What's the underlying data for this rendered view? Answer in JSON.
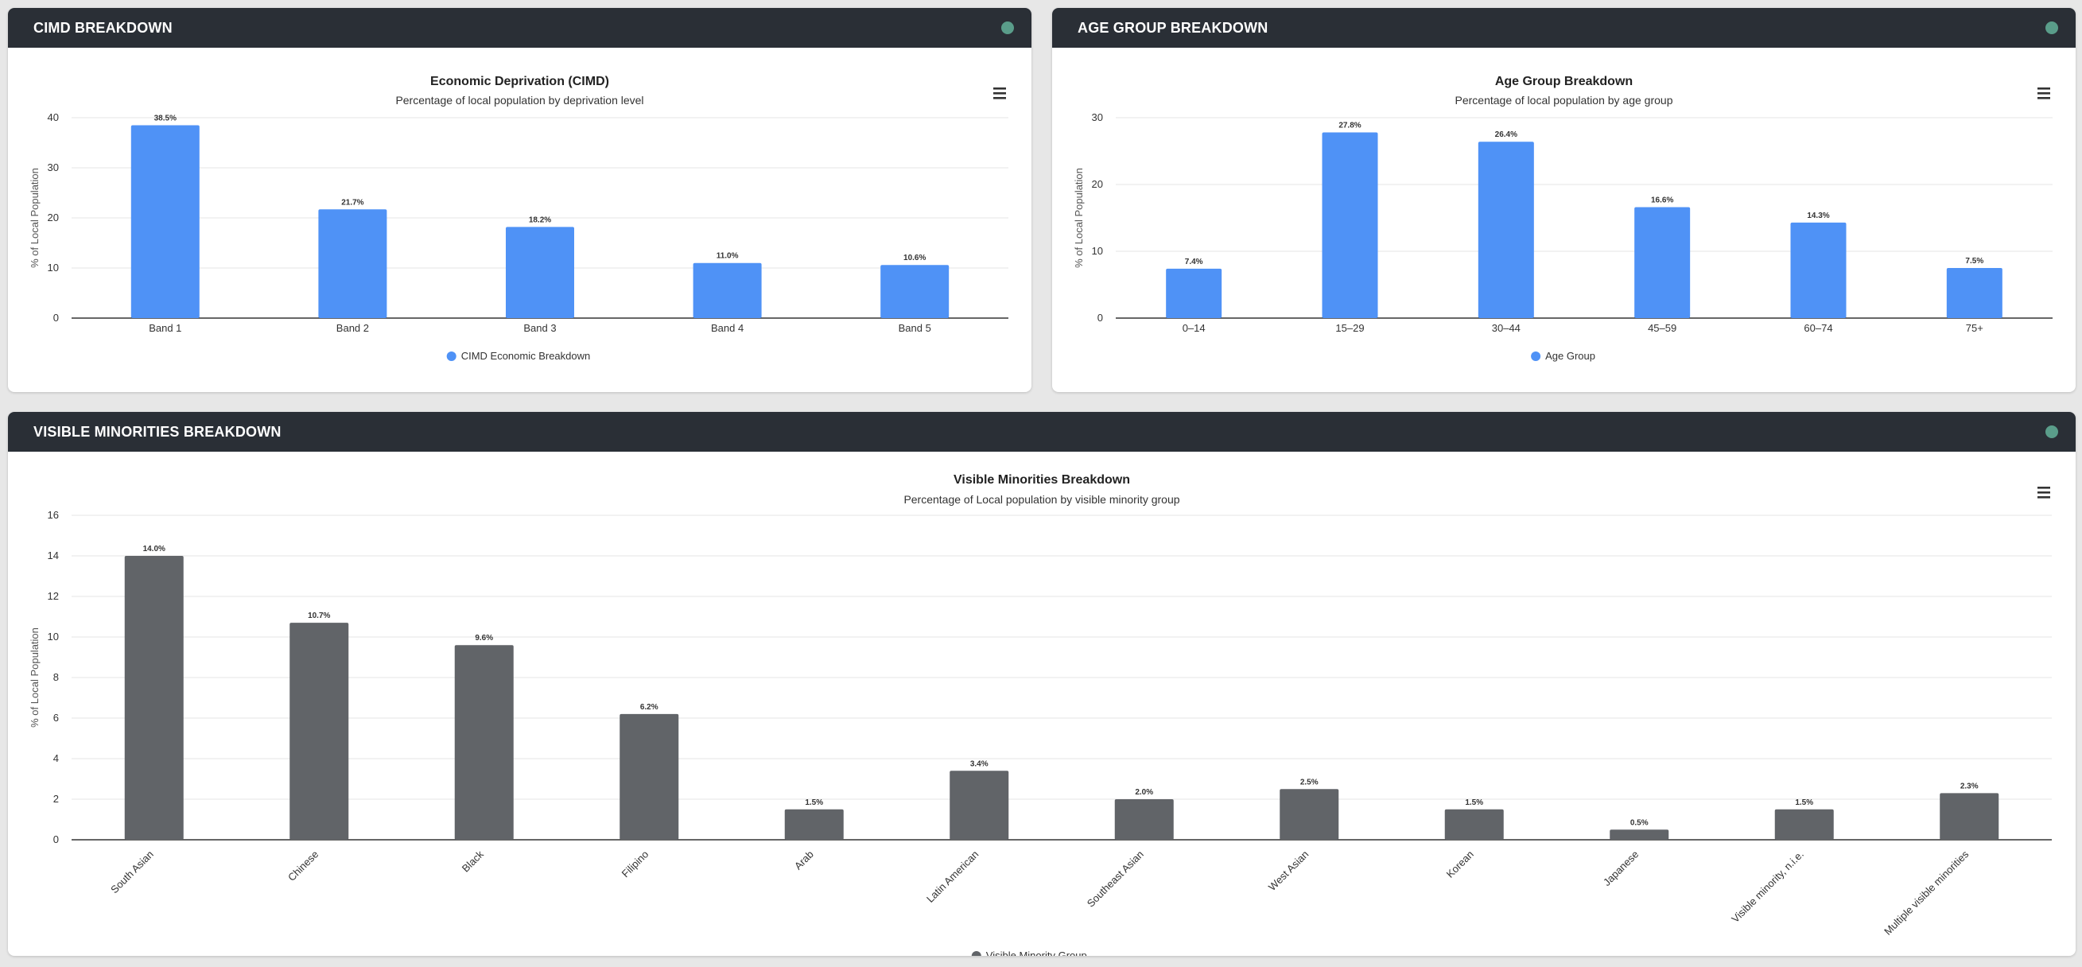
{
  "colors": {
    "blue": "#4f92f6",
    "gray": "#616468",
    "status": "#5a9d8a"
  },
  "cards": {
    "cimd": {
      "header": "CIMD BREAKDOWN"
    },
    "age": {
      "header": "AGE GROUP BREAKDOWN"
    },
    "vm": {
      "header": "VISIBLE MINORITIES BREAKDOWN"
    }
  },
  "chart_data": [
    {
      "id": "cimd",
      "type": "bar",
      "title": "Economic Deprivation (CIMD)",
      "subtitle": "Percentage of local population by deprivation level",
      "ylabel": "% of Local Population",
      "xlabel": "",
      "ylim": [
        0,
        40
      ],
      "yticks": [
        0,
        10,
        20,
        30,
        40
      ],
      "categories": [
        "Band 1",
        "Band 2",
        "Band 3",
        "Band 4",
        "Band 5"
      ],
      "series": [
        {
          "name": "CIMD Economic Breakdown",
          "values": [
            38.5,
            21.7,
            18.2,
            11.0,
            10.6
          ],
          "labels": [
            "38.5%",
            "21.7%",
            "18.2%",
            "11.0%",
            "10.6%"
          ]
        }
      ],
      "color": "#4f92f6",
      "grid": true,
      "legend": "bottom-center"
    },
    {
      "id": "age",
      "type": "bar",
      "title": "Age Group Breakdown",
      "subtitle": "Percentage of local population by age group",
      "ylabel": "% of Local Population",
      "xlabel": "",
      "ylim": [
        0,
        30
      ],
      "yticks": [
        0,
        10,
        20,
        30
      ],
      "categories": [
        "0–14",
        "15–29",
        "30–44",
        "45–59",
        "60–74",
        "75+"
      ],
      "series": [
        {
          "name": "Age Group",
          "values": [
            7.4,
            27.8,
            26.4,
            16.6,
            14.3,
            7.5
          ],
          "labels": [
            "7.4%",
            "27.8%",
            "26.4%",
            "16.6%",
            "14.3%",
            "7.5%"
          ]
        }
      ],
      "color": "#4f92f6",
      "grid": true,
      "legend": "bottom-center"
    },
    {
      "id": "vm",
      "type": "bar",
      "title": "Visible Minorities Breakdown",
      "subtitle": "Percentage of Local population by visible minority group",
      "ylabel": "% of Local Population",
      "xlabel": "",
      "ylim": [
        0,
        16
      ],
      "yticks": [
        0,
        2,
        4,
        6,
        8,
        10,
        12,
        14,
        16
      ],
      "categories": [
        "South Asian",
        "Chinese",
        "Black",
        "Filipino",
        "Arab",
        "Latin American",
        "Southeast Asian",
        "West Asian",
        "Korean",
        "Japanese",
        "Visible minority, n.i.e.",
        "Multiple visible minorities"
      ],
      "series": [
        {
          "name": "Visible Minority Group",
          "values": [
            14.0,
            10.7,
            9.6,
            6.2,
            1.5,
            3.4,
            2.0,
            2.5,
            1.5,
            0.5,
            1.5,
            2.3
          ],
          "labels": [
            "14.0%",
            "10.7%",
            "9.6%",
            "6.2%",
            "1.5%",
            "3.4%",
            "2.0%",
            "2.5%",
            "1.5%",
            "0.5%",
            "1.5%",
            "2.3%"
          ]
        }
      ],
      "color": "#616468",
      "grid": true,
      "legend": "bottom-center",
      "rotated_xlabels": true
    }
  ]
}
